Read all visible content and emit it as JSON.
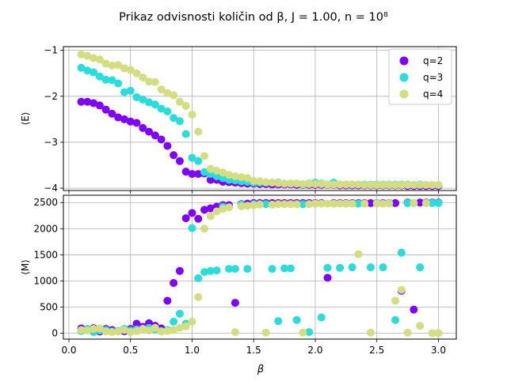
{
  "chart_data": {
    "type": "scatter",
    "title": "Prikaz odvisnosti količin od β, J = 1.00, n = 10⁸",
    "xlabel": "β",
    "xlim": [
      -0.045,
      3.145
    ],
    "x_ticks": [
      0.0,
      0.5,
      1.0,
      1.5,
      2.0,
      2.5,
      3.0
    ],
    "x_tick_labels": [
      "0.0",
      "0.5",
      "1.0",
      "1.5",
      "2.0",
      "2.5",
      "3.0"
    ],
    "grid": true,
    "legend_location": "upper right of the top panel",
    "x": [
      0.1,
      0.15,
      0.2,
      0.25,
      0.3,
      0.35,
      0.4,
      0.45,
      0.5,
      0.55,
      0.6,
      0.65,
      0.7,
      0.75,
      0.8,
      0.85,
      0.9,
      0.95,
      1.0,
      1.05,
      1.1,
      1.15,
      1.2,
      1.25,
      1.3,
      1.35,
      1.4,
      1.45,
      1.5,
      1.55,
      1.6,
      1.65,
      1.7,
      1.75,
      1.8,
      1.85,
      1.9,
      1.95,
      2.0,
      2.05,
      2.1,
      2.15,
      2.2,
      2.25,
      2.3,
      2.35,
      2.4,
      2.45,
      2.5,
      2.55,
      2.6,
      2.65,
      2.7,
      2.75,
      2.8,
      2.85,
      2.9,
      2.95,
      3.0
    ],
    "series_names": [
      "q=2",
      "q=3",
      "q=4"
    ],
    "colors": [
      "#8000ff",
      "#2adddd",
      "#d4dd80"
    ],
    "subplots": [
      {
        "ylabel": "⟨E⟩",
        "ylim": [
          -4.05,
          -0.92
        ],
        "y_ticks": [
          -4,
          -3,
          -2,
          -1
        ],
        "y_tick_labels": [
          "−4",
          "−3",
          "−2",
          "−1"
        ],
        "series": [
          {
            "name": "q=2",
            "values": [
              -2.12,
              -2.12,
              -2.15,
              -2.2,
              -2.29,
              -2.38,
              -2.46,
              -2.5,
              -2.55,
              -2.58,
              -2.69,
              -2.77,
              -2.85,
              -2.94,
              -3.08,
              -3.28,
              -3.41,
              -3.64,
              -3.69,
              -3.69,
              -3.68,
              -3.82,
              -3.82,
              -3.86,
              -3.87,
              -3.88,
              -3.89,
              -3.9,
              -3.9,
              -3.91,
              -3.91,
              -3.92,
              -3.92,
              -3.92,
              -3.92,
              -3.93,
              -3.93,
              -3.93,
              -3.93,
              -3.93,
              -3.93,
              -3.93,
              -3.94,
              -3.94,
              -3.94,
              -3.94,
              -3.94,
              -3.94,
              -3.94,
              -3.94,
              -3.94,
              -3.94,
              -3.94,
              -3.95,
              -3.95,
              -3.95,
              -3.95,
              -3.95,
              -3.95
            ]
          },
          {
            "name": "q=3",
            "values": [
              -1.38,
              -1.44,
              -1.48,
              -1.57,
              -1.64,
              -1.65,
              -1.72,
              -1.91,
              -1.88,
              -2.02,
              -2.07,
              -2.13,
              -2.18,
              -2.27,
              -2.33,
              -2.47,
              -2.54,
              -2.82,
              -3.34,
              -3.41,
              -3.65,
              -3.69,
              -3.74,
              -3.78,
              -3.82,
              -3.83,
              -3.85,
              -3.86,
              -3.88,
              -3.88,
              -3.88,
              -3.88,
              -3.88,
              -3.9,
              -3.9,
              -3.9,
              -3.92,
              -3.9,
              -3.88,
              -3.9,
              -3.92,
              -3.88,
              -3.92,
              -3.92,
              -3.92,
              -3.92,
              -3.92,
              -3.92,
              -3.92,
              -3.92,
              -3.92,
              -3.92,
              -3.92,
              -3.92,
              -3.93,
              -3.92,
              -3.93,
              -3.93,
              -3.93
            ]
          },
          {
            "name": "q=4",
            "values": [
              -1.09,
              -1.12,
              -1.17,
              -1.2,
              -1.29,
              -1.33,
              -1.32,
              -1.39,
              -1.43,
              -1.5,
              -1.59,
              -1.68,
              -1.69,
              -1.85,
              -1.93,
              -1.98,
              -2.12,
              -2.21,
              -2.4,
              -2.77,
              -3.3,
              -3.58,
              -3.62,
              -3.66,
              -3.71,
              -3.74,
              -3.76,
              -3.78,
              -3.84,
              -3.85,
              -3.87,
              -3.88,
              -3.89,
              -3.9,
              -3.9,
              -3.9,
              -3.91,
              -3.91,
              -3.91,
              -3.91,
              -3.92,
              -3.92,
              -3.92,
              -3.92,
              -3.92,
              -3.92,
              -3.93,
              -3.93,
              -3.93,
              -3.93,
              -3.93,
              -3.93,
              -3.93,
              -3.93,
              -3.93,
              -3.93,
              -3.93,
              -3.93,
              -3.93
            ]
          }
        ]
      },
      {
        "ylabel": "⟨M⟩",
        "ylim": [
          -115,
          2640
        ],
        "y_ticks": [
          0,
          500,
          1000,
          1500,
          2000,
          2500
        ],
        "y_tick_labels": [
          "0",
          "500",
          "1000",
          "1500",
          "2000",
          "2500"
        ],
        "series": [
          {
            "name": "q=2",
            "values": [
              90,
              60,
              95,
              30,
              80,
              60,
              40,
              35,
              80,
              180,
              120,
              190,
              140,
              90,
              620,
              960,
              1190,
              2200,
              2300,
              2190,
              2360,
              2390,
              2420,
              2450,
              2450,
              580,
              2470,
              2480,
              2490,
              2490,
              2490,
              2490,
              2490,
              2490,
              2490,
              2490,
              2490,
              2490,
              2490,
              2490,
              1060,
              2490,
              2490,
              2490,
              2490,
              2490,
              2490,
              2490,
              2490,
              2490,
              2490,
              2490,
              810,
              2500,
              450,
              2500,
              2500,
              2500,
              2500
            ]
          },
          {
            "name": "q=3",
            "values": [
              40,
              80,
              20,
              50,
              60,
              30,
              40,
              80,
              50,
              70,
              80,
              100,
              70,
              40,
              60,
              220,
              370,
              180,
              2010,
              1050,
              1170,
              1190,
              1200,
              2420,
              1230,
              1230,
              2460,
              1230,
              2470,
              2470,
              2470,
              1230,
              230,
              1240,
              1240,
              250,
              2470,
              20,
              2480,
              300,
              1250,
              2480,
              1250,
              2480,
              1260,
              2480,
              2480,
              1260,
              2490,
              1260,
              2490,
              250,
              1540,
              2490,
              2490,
              1260,
              2490,
              2490,
              2490
            ]
          },
          {
            "name": "q=4",
            "values": [
              60,
              50,
              80,
              90,
              30,
              20,
              30,
              60,
              20,
              40,
              80,
              50,
              100,
              30,
              40,
              60,
              100,
              130,
              220,
              690,
              2000,
              2240,
              2330,
              2380,
              2410,
              20,
              2430,
              2440,
              2450,
              2460,
              10,
              2460,
              2470,
              2470,
              2470,
              2470,
              10,
              2470,
              2480,
              2480,
              2480,
              2480,
              2480,
              2480,
              2480,
              1510,
              2480,
              10,
              2480,
              2480,
              2480,
              620,
              830,
              10,
              2490,
              140,
              2490,
              0,
              0
            ]
          }
        ]
      }
    ]
  }
}
